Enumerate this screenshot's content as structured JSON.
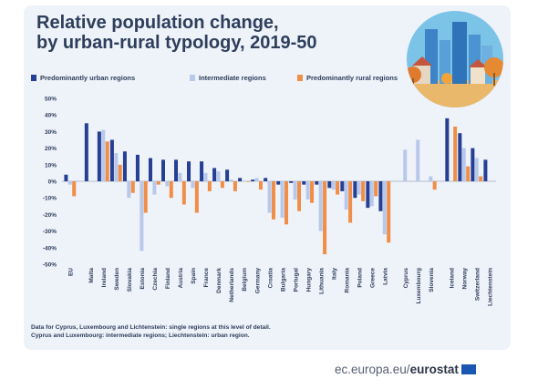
{
  "title_lines": [
    "Relative population change,",
    "by urban-rural typology, 2019-50"
  ],
  "legend": [
    {
      "label": "Predominantly urban regions",
      "color": "#243f93"
    },
    {
      "label": "Intermediate regions",
      "color": "#b8c8ea"
    },
    {
      "label": "Predominantly rural regions",
      "color": "#f08e48"
    }
  ],
  "footnote": [
    "Data for Cyprus, Luxembourg and Lichtenstein: single regions at this level of detail.",
    "Cyprus and Luxembourg: intermediate regions; Liechtenstein: urban region."
  ],
  "brand": {
    "prefix": "ec.europa.eu/",
    "bold": "eurostat"
  },
  "chart_data": {
    "type": "bar",
    "title": "Relative population change, by urban-rural typology, 2019-50",
    "xlabel": "",
    "ylabel": "",
    "ylim": [
      -50,
      50
    ],
    "ytick_labels": [
      "50%",
      "40%",
      "30%",
      "20%",
      "10%",
      "0%",
      "-10%",
      "-20%",
      "-30%",
      "-40%",
      "-50%"
    ],
    "grid": false,
    "legend_position": "top",
    "categories": [
      "EU",
      "Malta",
      "Ireland",
      "Sweden",
      "Slovakia",
      "Estonia",
      "Czechia",
      "Finland",
      "Austria",
      "Spain",
      "France",
      "Denmark",
      "Netherlands",
      "Belgium",
      "Germany",
      "Croatia",
      "Bulgaria",
      "Portugal",
      "Hungary",
      "Lithuania",
      "Italy",
      "Romania",
      "Poland",
      "Greece",
      "Latvia",
      "Cyprus",
      "Luxembourg",
      "Slovenia",
      "Iceland",
      "Norway",
      "Switzerland",
      "Liechtenstein"
    ],
    "gap_after": [
      "EU",
      "Latvia",
      "Slovenia"
    ],
    "series": [
      {
        "name": "Predominantly urban regions",
        "color": "#243f93",
        "values": [
          4,
          35,
          30,
          25,
          18,
          16,
          14,
          13,
          13,
          12,
          12,
          8,
          7,
          2,
          1,
          2,
          -2,
          -1,
          -2,
          -2,
          -4,
          -6,
          -10,
          -16,
          -18,
          null,
          null,
          null,
          38,
          29,
          20,
          13
        ]
      },
      {
        "name": "Intermediate regions",
        "color": "#b8c8ea",
        "values": [
          -2,
          null,
          31,
          17,
          -10,
          -42,
          -8,
          -3,
          5,
          -4,
          5,
          6,
          1,
          0,
          2,
          -19,
          -22,
          -11,
          -11,
          -30,
          -5,
          -17,
          -8,
          -15,
          -32,
          19,
          25,
          3,
          null,
          20,
          14,
          null
        ]
      },
      {
        "name": "Predominantly rural regions",
        "color": "#f08e48",
        "values": [
          -9,
          null,
          24,
          10,
          -7,
          -19,
          -2,
          -10,
          -14,
          -19,
          -6,
          -4,
          -6,
          0,
          -5,
          -23,
          -26,
          -18,
          -13,
          -44,
          -8,
          -25,
          -12,
          -9,
          -37,
          null,
          null,
          -5,
          33,
          9,
          3,
          null
        ]
      }
    ]
  }
}
